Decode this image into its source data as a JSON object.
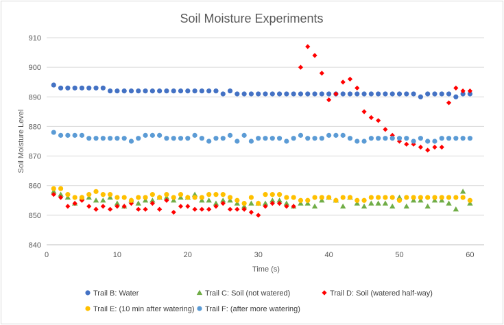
{
  "chart_data": {
    "type": "scatter",
    "title": "Soil Moisture Experiments",
    "xlabel": "Time (s)",
    "ylabel": "Soil Moisture Level",
    "xlim": [
      0,
      62
    ],
    "ylim": [
      840,
      910
    ],
    "xticks": [
      0,
      10,
      20,
      30,
      40,
      50,
      60
    ],
    "yticks": [
      840,
      850,
      860,
      870,
      880,
      890,
      900,
      910
    ],
    "grid": "horizontal",
    "legend_position": "bottom",
    "series": [
      {
        "name": "Trail B: Water",
        "color": "#4472c4",
        "marker": "circle",
        "points": [
          [
            1,
            894
          ],
          [
            2,
            893
          ],
          [
            3,
            893
          ],
          [
            4,
            893
          ],
          [
            5,
            893
          ],
          [
            6,
            893
          ],
          [
            7,
            893
          ],
          [
            8,
            893
          ],
          [
            9,
            892
          ],
          [
            10,
            892
          ],
          [
            11,
            892
          ],
          [
            12,
            892
          ],
          [
            13,
            892
          ],
          [
            14,
            892
          ],
          [
            15,
            892
          ],
          [
            16,
            892
          ],
          [
            17,
            892
          ],
          [
            18,
            892
          ],
          [
            19,
            892
          ],
          [
            20,
            892
          ],
          [
            21,
            892
          ],
          [
            22,
            892
          ],
          [
            23,
            892
          ],
          [
            24,
            892
          ],
          [
            25,
            891
          ],
          [
            26,
            892
          ],
          [
            27,
            891
          ],
          [
            28,
            891
          ],
          [
            29,
            891
          ],
          [
            30,
            891
          ],
          [
            31,
            891
          ],
          [
            32,
            891
          ],
          [
            33,
            891
          ],
          [
            34,
            891
          ],
          [
            35,
            891
          ],
          [
            36,
            891
          ],
          [
            37,
            891
          ],
          [
            38,
            891
          ],
          [
            39,
            891
          ],
          [
            40,
            891
          ],
          [
            41,
            891
          ],
          [
            42,
            891
          ],
          [
            43,
            891
          ],
          [
            44,
            891
          ],
          [
            45,
            891
          ],
          [
            46,
            891
          ],
          [
            47,
            891
          ],
          [
            48,
            891
          ],
          [
            49,
            891
          ],
          [
            50,
            891
          ],
          [
            51,
            891
          ],
          [
            52,
            891
          ],
          [
            53,
            890
          ],
          [
            54,
            891
          ],
          [
            55,
            891
          ],
          [
            56,
            891
          ],
          [
            57,
            891
          ],
          [
            58,
            890
          ],
          [
            59,
            891
          ],
          [
            60,
            891
          ]
        ]
      },
      {
        "name": "Trail C: Soil (not watered)",
        "color": "#70ad47",
        "marker": "triangle",
        "points": [
          [
            1,
            858
          ],
          [
            2,
            857
          ],
          [
            3,
            856
          ],
          [
            4,
            854
          ],
          [
            5,
            856
          ],
          [
            6,
            856
          ],
          [
            7,
            855
          ],
          [
            8,
            855
          ],
          [
            9,
            856
          ],
          [
            10,
            854
          ],
          [
            11,
            853
          ],
          [
            12,
            855
          ],
          [
            13,
            854
          ],
          [
            14,
            855
          ],
          [
            15,
            855
          ],
          [
            16,
            856
          ],
          [
            17,
            856
          ],
          [
            18,
            855
          ],
          [
            19,
            856
          ],
          [
            20,
            856
          ],
          [
            21,
            857
          ],
          [
            22,
            855
          ],
          [
            23,
            855
          ],
          [
            24,
            854
          ],
          [
            25,
            855
          ],
          [
            26,
            855
          ],
          [
            27,
            854
          ],
          [
            28,
            853
          ],
          [
            29,
            854
          ],
          [
            30,
            854
          ],
          [
            31,
            854
          ],
          [
            32,
            855
          ],
          [
            33,
            855
          ],
          [
            34,
            854
          ],
          [
            35,
            853
          ],
          [
            36,
            854
          ],
          [
            37,
            854
          ],
          [
            38,
            853
          ],
          [
            39,
            855
          ],
          [
            40,
            856
          ],
          [
            41,
            855
          ],
          [
            42,
            853
          ],
          [
            43,
            856
          ],
          [
            44,
            854
          ],
          [
            45,
            853
          ],
          [
            46,
            854
          ],
          [
            47,
            854
          ],
          [
            48,
            854
          ],
          [
            49,
            853
          ],
          [
            50,
            856
          ],
          [
            51,
            853
          ],
          [
            52,
            855
          ],
          [
            53,
            855
          ],
          [
            54,
            853
          ],
          [
            55,
            855
          ],
          [
            56,
            855
          ],
          [
            57,
            854
          ],
          [
            58,
            852
          ],
          [
            59,
            858
          ],
          [
            60,
            854
          ]
        ]
      },
      {
        "name": "Trail D: Soil (watered half-way)",
        "color": "#ff0000",
        "marker": "diamond",
        "points": [
          [
            1,
            857
          ],
          [
            2,
            856
          ],
          [
            3,
            853
          ],
          [
            4,
            854
          ],
          [
            5,
            855
          ],
          [
            6,
            853
          ],
          [
            7,
            852
          ],
          [
            8,
            853
          ],
          [
            9,
            852
          ],
          [
            10,
            853
          ],
          [
            11,
            853
          ],
          [
            12,
            854
          ],
          [
            13,
            852
          ],
          [
            14,
            852
          ],
          [
            15,
            854
          ],
          [
            16,
            852
          ],
          [
            17,
            855
          ],
          [
            18,
            851
          ],
          [
            19,
            853
          ],
          [
            20,
            853
          ],
          [
            21,
            852
          ],
          [
            22,
            852
          ],
          [
            23,
            852
          ],
          [
            24,
            853
          ],
          [
            25,
            854
          ],
          [
            26,
            852
          ],
          [
            27,
            852
          ],
          [
            28,
            852
          ],
          [
            29,
            851
          ],
          [
            30,
            850
          ],
          [
            31,
            853
          ],
          [
            32,
            854
          ],
          [
            33,
            854
          ],
          [
            34,
            853
          ],
          [
            35,
            853
          ],
          [
            36,
            900
          ],
          [
            37,
            907
          ],
          [
            38,
            904
          ],
          [
            39,
            898
          ],
          [
            40,
            889
          ],
          [
            41,
            891
          ],
          [
            42,
            895
          ],
          [
            43,
            896
          ],
          [
            44,
            893
          ],
          [
            45,
            885
          ],
          [
            46,
            883
          ],
          [
            47,
            882
          ],
          [
            48,
            879
          ],
          [
            49,
            877
          ],
          [
            50,
            875
          ],
          [
            51,
            874
          ],
          [
            52,
            874
          ],
          [
            53,
            873
          ],
          [
            54,
            872
          ],
          [
            55,
            873
          ],
          [
            56,
            873
          ],
          [
            57,
            888
          ],
          [
            58,
            893
          ],
          [
            59,
            892
          ],
          [
            60,
            892
          ]
        ]
      },
      {
        "name": "Trail E: (10 min after watering)",
        "color": "#ffc000",
        "marker": "circle",
        "points": [
          [
            1,
            859
          ],
          [
            2,
            859
          ],
          [
            3,
            857
          ],
          [
            4,
            856
          ],
          [
            5,
            856
          ],
          [
            6,
            857
          ],
          [
            7,
            858
          ],
          [
            8,
            857
          ],
          [
            9,
            857
          ],
          [
            10,
            856
          ],
          [
            11,
            856
          ],
          [
            12,
            855
          ],
          [
            13,
            856
          ],
          [
            14,
            856
          ],
          [
            15,
            857
          ],
          [
            16,
            856
          ],
          [
            17,
            857
          ],
          [
            18,
            856
          ],
          [
            19,
            857
          ],
          [
            20,
            856
          ],
          [
            21,
            856
          ],
          [
            22,
            856
          ],
          [
            23,
            857
          ],
          [
            24,
            857
          ],
          [
            25,
            857
          ],
          [
            26,
            856
          ],
          [
            27,
            855
          ],
          [
            28,
            854
          ],
          [
            29,
            856
          ],
          [
            30,
            854
          ],
          [
            31,
            857
          ],
          [
            32,
            857
          ],
          [
            33,
            857
          ],
          [
            34,
            856
          ],
          [
            35,
            856
          ],
          [
            36,
            855
          ],
          [
            37,
            855
          ],
          [
            38,
            856
          ],
          [
            39,
            856
          ],
          [
            40,
            856
          ],
          [
            41,
            855
          ],
          [
            42,
            856
          ],
          [
            43,
            856
          ],
          [
            44,
            855
          ],
          [
            45,
            855
          ],
          [
            46,
            856
          ],
          [
            47,
            856
          ],
          [
            48,
            856
          ],
          [
            49,
            856
          ],
          [
            50,
            855
          ],
          [
            51,
            856
          ],
          [
            52,
            856
          ],
          [
            53,
            856
          ],
          [
            54,
            856
          ],
          [
            55,
            856
          ],
          [
            56,
            856
          ],
          [
            57,
            856
          ],
          [
            58,
            856
          ],
          [
            59,
            856
          ],
          [
            60,
            855
          ]
        ]
      },
      {
        "name": "Trail F: (after more watering)",
        "color": "#5b9bd5",
        "marker": "circle",
        "points": [
          [
            1,
            878
          ],
          [
            2,
            877
          ],
          [
            3,
            877
          ],
          [
            4,
            877
          ],
          [
            5,
            877
          ],
          [
            6,
            876
          ],
          [
            7,
            876
          ],
          [
            8,
            876
          ],
          [
            9,
            876
          ],
          [
            10,
            876
          ],
          [
            11,
            876
          ],
          [
            12,
            875
          ],
          [
            13,
            876
          ],
          [
            14,
            877
          ],
          [
            15,
            877
          ],
          [
            16,
            877
          ],
          [
            17,
            876
          ],
          [
            18,
            876
          ],
          [
            19,
            876
          ],
          [
            20,
            876
          ],
          [
            21,
            877
          ],
          [
            22,
            876
          ],
          [
            23,
            875
          ],
          [
            24,
            876
          ],
          [
            25,
            876
          ],
          [
            26,
            877
          ],
          [
            27,
            875
          ],
          [
            28,
            877
          ],
          [
            29,
            875
          ],
          [
            30,
            876
          ],
          [
            31,
            876
          ],
          [
            32,
            876
          ],
          [
            33,
            876
          ],
          [
            34,
            875
          ],
          [
            35,
            876
          ],
          [
            36,
            877
          ],
          [
            37,
            876
          ],
          [
            38,
            876
          ],
          [
            39,
            876
          ],
          [
            40,
            877
          ],
          [
            41,
            877
          ],
          [
            42,
            877
          ],
          [
            43,
            876
          ],
          [
            44,
            875
          ],
          [
            45,
            875
          ],
          [
            46,
            876
          ],
          [
            47,
            876
          ],
          [
            48,
            876
          ],
          [
            49,
            876
          ],
          [
            50,
            876
          ],
          [
            51,
            876
          ],
          [
            52,
            875
          ],
          [
            53,
            876
          ],
          [
            54,
            875
          ],
          [
            55,
            875
          ],
          [
            56,
            876
          ],
          [
            57,
            876
          ],
          [
            58,
            876
          ],
          [
            59,
            876
          ],
          [
            60,
            876
          ]
        ]
      }
    ]
  }
}
